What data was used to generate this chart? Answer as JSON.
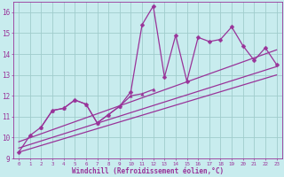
{
  "xlabel": "Windchill (Refroidissement éolien,°C)",
  "bg_color": "#c8ecee",
  "grid_color": "#a0cccc",
  "line_color": "#993399",
  "xlim": [
    -0.5,
    23.5
  ],
  "ylim": [
    9,
    16.5
  ],
  "xticks": [
    0,
    1,
    2,
    3,
    4,
    5,
    6,
    7,
    8,
    9,
    10,
    11,
    12,
    13,
    14,
    15,
    16,
    17,
    18,
    19,
    20,
    21,
    22,
    23
  ],
  "yticks": [
    9,
    10,
    11,
    12,
    13,
    14,
    15,
    16
  ],
  "series": [
    {
      "x": [
        0,
        1,
        2,
        3,
        4,
        5,
        6,
        7,
        8,
        9,
        10,
        11,
        12,
        13,
        14,
        15,
        16,
        17,
        18,
        19,
        20,
        21,
        22,
        23
      ],
      "y": [
        9.3,
        10.1,
        10.5,
        11.3,
        11.4,
        11.8,
        11.6,
        10.7,
        11.1,
        11.5,
        12.2,
        15.4,
        16.3,
        12.9,
        14.9,
        12.7,
        14.8,
        14.6,
        14.7,
        15.3,
        14.4,
        13.7,
        14.3,
        13.5
      ],
      "marker": "D",
      "markersize": 2.5,
      "linewidth": 0.9
    },
    {
      "x": [
        0,
        23
      ],
      "y": [
        9.8,
        14.2
      ],
      "marker": null,
      "markersize": 0,
      "linewidth": 0.9
    },
    {
      "x": [
        0,
        23
      ],
      "y": [
        9.5,
        13.4
      ],
      "marker": null,
      "markersize": 0,
      "linewidth": 0.9
    },
    {
      "x": [
        0,
        23
      ],
      "y": [
        9.3,
        13.0
      ],
      "marker": null,
      "markersize": 0,
      "linewidth": 0.9
    },
    {
      "x": [
        2,
        3,
        4,
        5,
        6,
        7,
        8,
        9,
        10,
        11,
        12
      ],
      "y": [
        10.5,
        11.3,
        11.4,
        11.8,
        11.6,
        10.7,
        11.1,
        11.5,
        12.0,
        12.1,
        12.3
      ],
      "marker": "^",
      "markersize": 2.5,
      "linewidth": 0.9
    }
  ]
}
